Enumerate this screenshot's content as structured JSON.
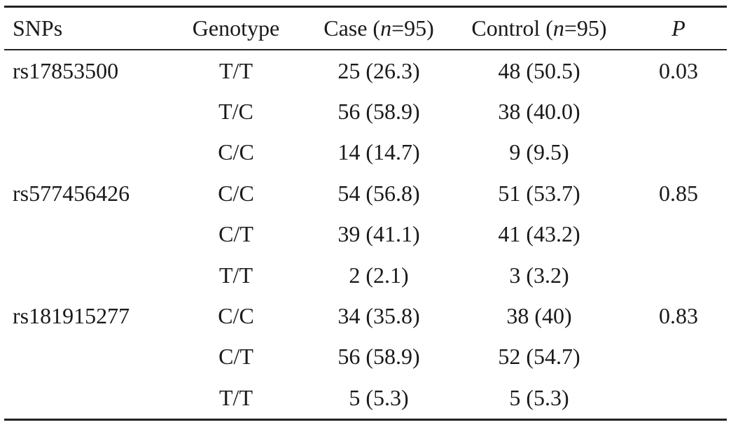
{
  "table": {
    "headers": {
      "snps": "SNPs",
      "genotype": "Genotype",
      "case_prefix": "Case (",
      "case_n": "n",
      "case_suffix": "=95)",
      "control_prefix": "Control (",
      "control_n": "n",
      "control_suffix": "=95)",
      "p": "P"
    },
    "rows": [
      {
        "snp": "rs17853500",
        "genotype": "T/T",
        "case": "25 (26.3)",
        "control": "48 (50.5)",
        "p": "0.03"
      },
      {
        "snp": "",
        "genotype": "T/C",
        "case": "56 (58.9)",
        "control": "38 (40.0)",
        "p": ""
      },
      {
        "snp": "",
        "genotype": "C/C",
        "case": "14 (14.7)",
        "control": "9 (9.5)",
        "p": ""
      },
      {
        "snp": "rs577456426",
        "genotype": "C/C",
        "case": "54 (56.8)",
        "control": "51 (53.7)",
        "p": "0.85"
      },
      {
        "snp": "",
        "genotype": "C/T",
        "case": "39 (41.1)",
        "control": "41 (43.2)",
        "p": ""
      },
      {
        "snp": "",
        "genotype": "T/T",
        "case": "2 (2.1)",
        "control": "3 (3.2)",
        "p": ""
      },
      {
        "snp": "rs181915277",
        "genotype": "C/C",
        "case": "34 (35.8)",
        "control": "38 (40)",
        "p": "0.83"
      },
      {
        "snp": "",
        "genotype": "C/T",
        "case": "56 (58.9)",
        "control": "52 (54.7)",
        "p": ""
      },
      {
        "snp": "",
        "genotype": "T/T",
        "case": "5 (5.3)",
        "control": "5 (5.3)",
        "p": ""
      }
    ]
  }
}
